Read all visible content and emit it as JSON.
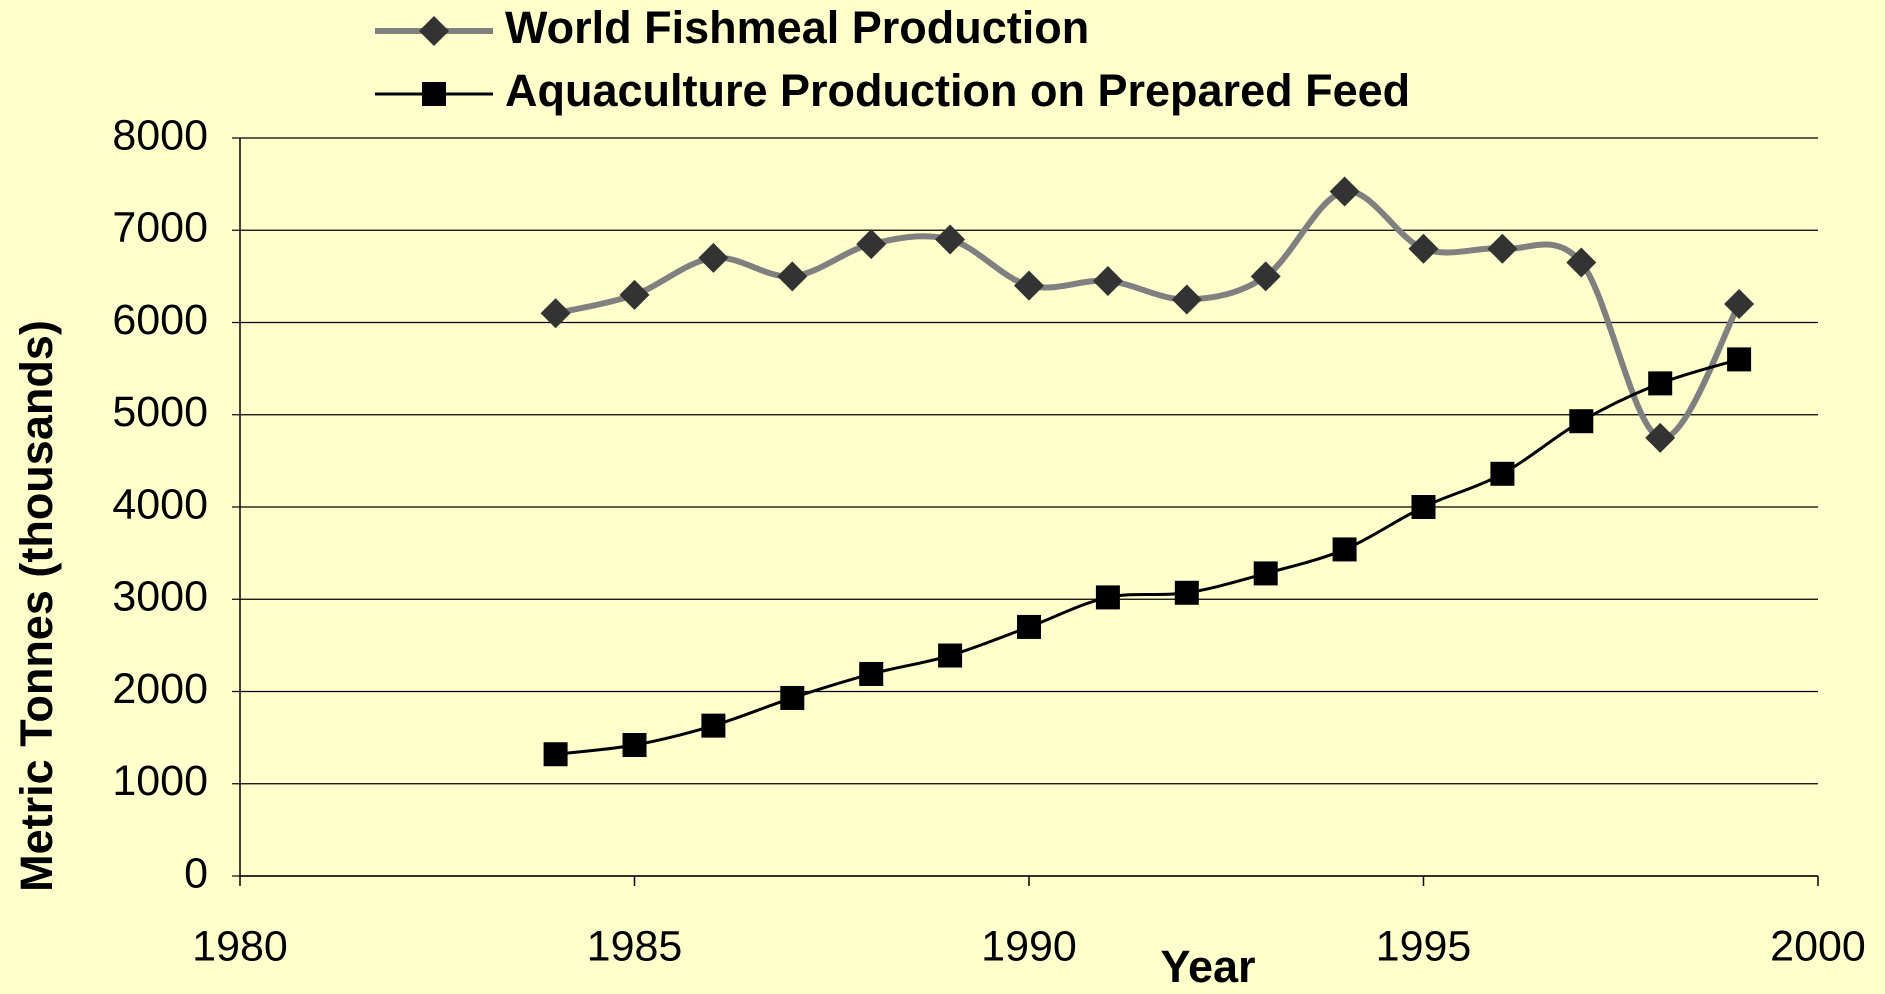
{
  "chart_data": {
    "type": "line",
    "xlabel": "Year",
    "ylabel": "Metric Tonnes (thousands)",
    "xlim": [
      1980,
      2000
    ],
    "xticks": [
      1980,
      1985,
      1990,
      1995,
      2000
    ],
    "ylim": [
      0,
      8000
    ],
    "yticks": [
      0,
      1000,
      2000,
      3000,
      4000,
      5000,
      6000,
      7000,
      8000
    ],
    "grid": true,
    "smooth": true,
    "legend": "top",
    "x": [
      1984,
      1985,
      1986,
      1987,
      1988,
      1989,
      1990,
      1991,
      1992,
      1993,
      1994,
      1995,
      1996,
      1997,
      1998,
      1999
    ],
    "series": [
      {
        "name": "World Fishmeal Production",
        "color": "#808080",
        "marker": "diamond",
        "marker_color": "#333333",
        "values": [
          6100,
          6300,
          6700,
          6500,
          6850,
          6900,
          6400,
          6450,
          6250,
          6500,
          7420,
          6800,
          6800,
          6650,
          4750,
          6200
        ]
      },
      {
        "name": "Aquaculture Production on Prepared Feed",
        "color": "#000000",
        "marker": "square",
        "marker_color": "#000000",
        "values": [
          1320,
          1420,
          1630,
          1930,
          2190,
          2390,
          2700,
          3020,
          3070,
          3280,
          3540,
          4000,
          4360,
          4930,
          5340,
          5600
        ]
      }
    ]
  }
}
